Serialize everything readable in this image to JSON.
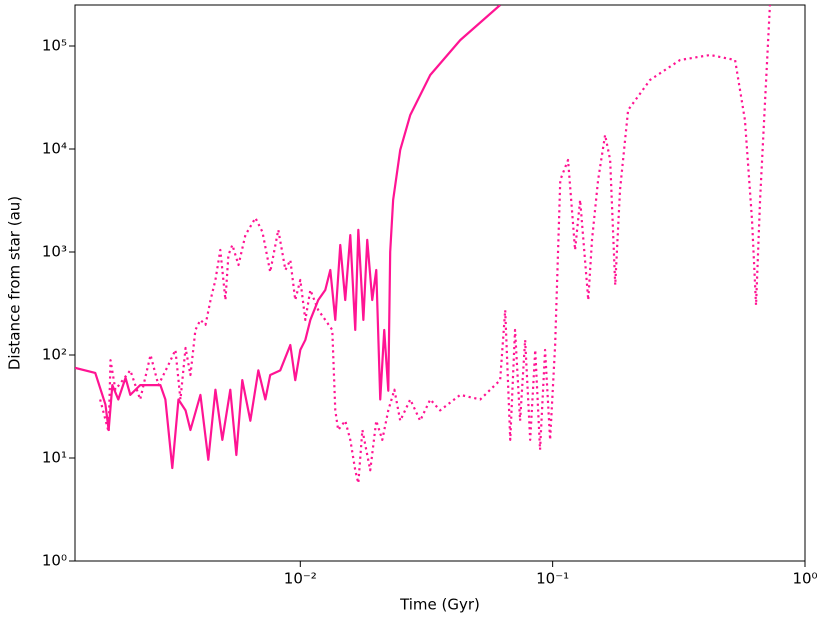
{
  "chart_data": {
    "type": "line",
    "xlabel": "Time (Gyr)",
    "ylabel": "Distance from star (au)",
    "xscale": "log",
    "yscale": "log",
    "xlim": [
      0.00128,
      1
    ],
    "ylim": [
      1,
      250000
    ],
    "xticks": [
      {
        "value": 0.01,
        "label": "10⁻²"
      },
      {
        "value": 0.1,
        "label": "10⁻¹"
      },
      {
        "value": 1,
        "label": "10⁰"
      }
    ],
    "yticks": [
      {
        "value": 1,
        "label": "10⁰"
      },
      {
        "value": 10,
        "label": "10¹"
      },
      {
        "value": 100,
        "label": "10²"
      },
      {
        "value": 1000,
        "label": "10³"
      },
      {
        "value": 10000,
        "label": "10⁴"
      },
      {
        "value": 100000,
        "label": "10⁵"
      }
    ],
    "series": [
      {
        "color": "#ff1493",
        "linestyle": "solid",
        "x": [
          0.00128,
          0.00154,
          0.00169,
          0.00174,
          0.0018,
          0.0019,
          0.00203,
          0.00212,
          0.00232,
          0.00279,
          0.00292,
          0.00311,
          0.00329,
          0.00351,
          0.00367,
          0.00402,
          0.00432,
          0.00461,
          0.00491,
          0.00528,
          0.00558,
          0.00589,
          0.00634,
          0.00682,
          0.00727,
          0.0076,
          0.00833,
          0.00913,
          0.00955,
          0.01,
          0.01047,
          0.01096,
          0.01178,
          0.01256,
          0.01315,
          0.01376,
          0.0144,
          0.01507,
          0.01578,
          0.01651,
          0.01698,
          0.01778,
          0.01842,
          0.01928,
          0.02,
          0.02074,
          0.02151,
          0.02232,
          0.02271,
          0.02333,
          0.02489,
          0.02728,
          0.03273,
          0.04303,
          0.06194
        ],
        "values": [
          75,
          67,
          33,
          18.7,
          51,
          37,
          60,
          41,
          51,
          51,
          37,
          8,
          37,
          29,
          18.7,
          41,
          9.6,
          46,
          15,
          46,
          10.7,
          57,
          23,
          71,
          37,
          64,
          71,
          125,
          57,
          112,
          140,
          219,
          342,
          428,
          669,
          219,
          1170,
          342,
          1460,
          175,
          1640,
          219,
          1310,
          342,
          669,
          37,
          175,
          45,
          1000,
          3200,
          9800,
          21400,
          52300,
          114000,
          250000
        ]
      },
      {
        "color": "#ff1493",
        "linestyle": "dotted",
        "x": [
          0.00161,
          0.00174,
          0.00177,
          0.00185,
          0.00212,
          0.00232,
          0.00255,
          0.00274,
          0.003,
          0.0032,
          0.00335,
          0.00351,
          0.00367,
          0.00384,
          0.00402,
          0.00421,
          0.00441,
          0.00461,
          0.00482,
          0.00505,
          0.00519,
          0.00538,
          0.00569,
          0.00606,
          0.00664,
          0.00708,
          0.0076,
          0.00818,
          0.00873,
          0.00913,
          0.00955,
          0.01,
          0.01047,
          0.01096,
          0.01178,
          0.01256,
          0.01339,
          0.01376,
          0.01413,
          0.01507,
          0.01578,
          0.01651,
          0.01698,
          0.01762,
          0.01893,
          0.02,
          0.02113,
          0.02232,
          0.0236,
          0.02489,
          0.02728,
          0.02985,
          0.03273,
          0.03581,
          0.04303,
          0.05164,
          0.06194,
          0.06486,
          0.06792,
          0.07096,
          0.0743,
          0.0778,
          0.08147,
          0.08531,
          0.08913,
          0.09333,
          0.09772,
          0.1023,
          0.1072,
          0.1151,
          0.1227,
          0.1285,
          0.1384,
          0.1432,
          0.1514,
          0.1614,
          0.169,
          0.177,
          0.1849,
          0.1991,
          0.2432,
          0.3199,
          0.4207,
          0.5284,
          0.5781,
          0.6166,
          0.6397,
          0.6637,
          0.695,
          0.7262
        ],
        "values": [
          37,
          17.9,
          89,
          46,
          71,
          37,
          100,
          51,
          80,
          112,
          37,
          117,
          64,
          175,
          219,
          196,
          342,
          535,
          1046,
          342,
          935,
          1170,
          748,
          1460,
          2140,
          1564,
          640,
          1640,
          669,
          836,
          342,
          535,
          219,
          428,
          273,
          219,
          175,
          29,
          18.7,
          23,
          15,
          7.6,
          5.7,
          18.7,
          7.6,
          23,
          15,
          29,
          46,
          23,
          37,
          23,
          37,
          29,
          41,
          37,
          57,
          273,
          15,
          175,
          23,
          140,
          15,
          112,
          12,
          112,
          15,
          125,
          5000,
          7820,
          1046,
          3200,
          342,
          1310,
          5000,
          13700,
          7820,
          478,
          4000,
          23900,
          46800,
          73100,
          81800,
          73100,
          19100,
          2045,
          305,
          3200,
          29900,
          250000
        ]
      }
    ]
  }
}
